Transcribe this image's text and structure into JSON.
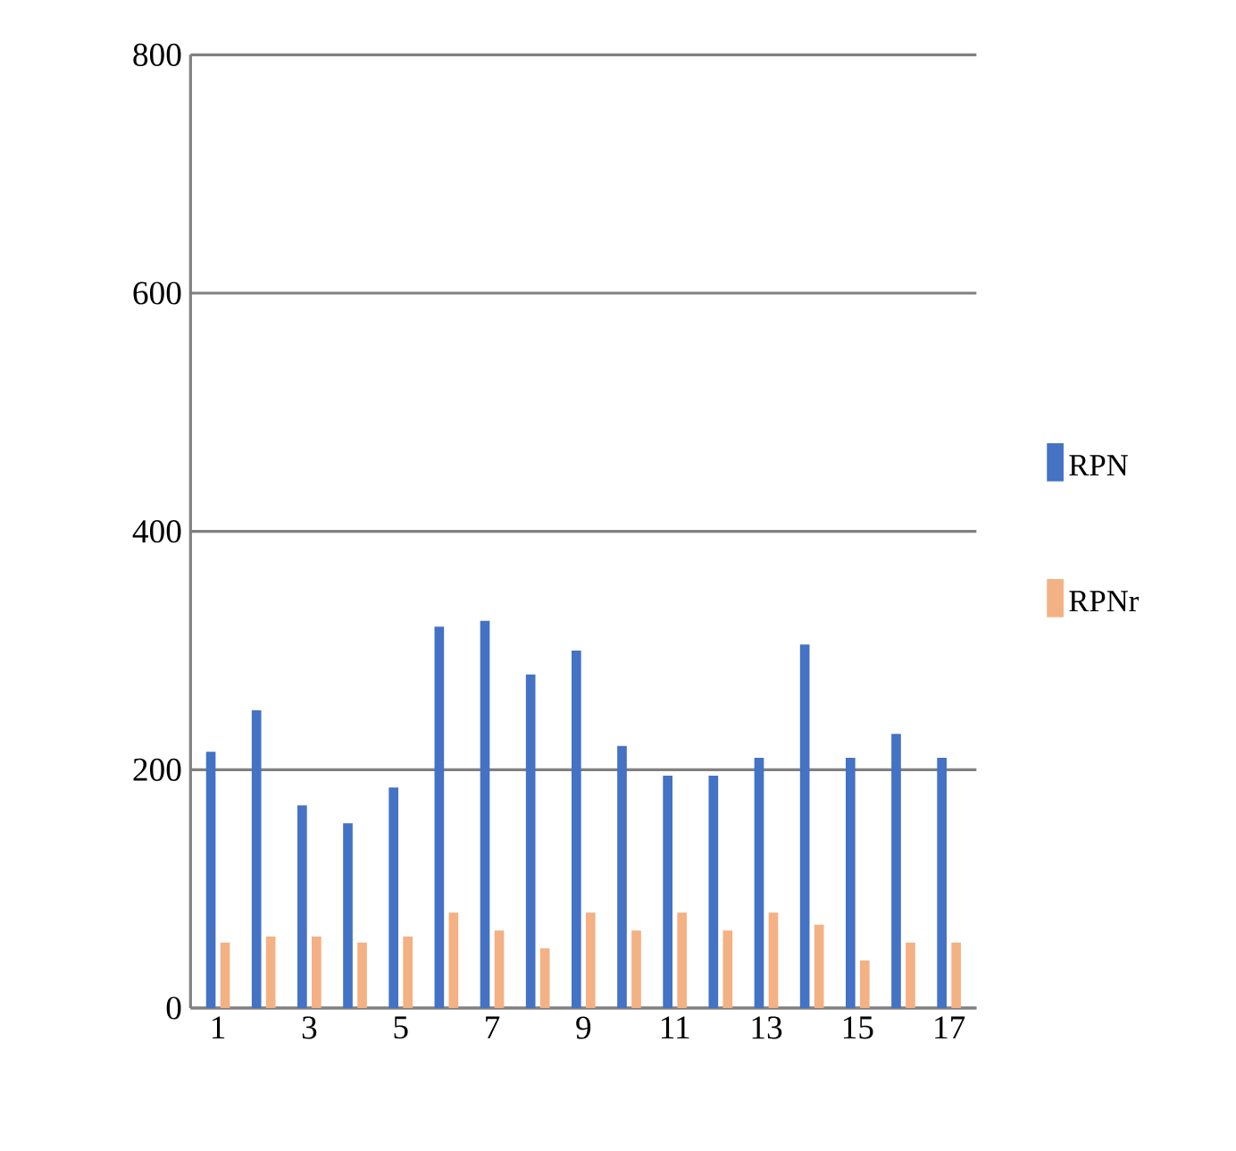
{
  "chart_data": {
    "type": "bar",
    "categories": [
      "1",
      null,
      "3",
      null,
      "5",
      null,
      "7",
      null,
      "9",
      null,
      "11",
      null,
      "13",
      null,
      "15",
      null,
      "17"
    ],
    "series": [
      {
        "name": "RPN",
        "color": "#4472c4",
        "values": [
          215,
          250,
          170,
          155,
          185,
          320,
          325,
          280,
          300,
          220,
          195,
          195,
          210,
          305,
          210,
          230,
          210
        ]
      },
      {
        "name": "RPNr",
        "color": "#f4b183",
        "values": [
          55,
          60,
          60,
          55,
          60,
          80,
          65,
          50,
          80,
          65,
          80,
          65,
          80,
          70,
          40,
          55,
          55
        ]
      }
    ],
    "ylim": [
      0,
      800
    ],
    "yticks": [
      0,
      200,
      400,
      600,
      800
    ],
    "grid": "y",
    "legend": "right"
  }
}
